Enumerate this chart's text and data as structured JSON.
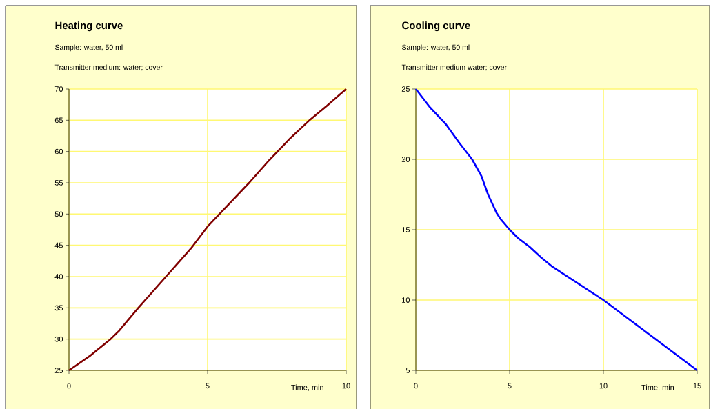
{
  "chart_data": [
    {
      "type": "line",
      "title": "Heating curve",
      "subtitle": "Sample: water, 50 ml",
      "annotations": [
        "Transmitter medium: water; cover"
      ],
      "xlabel": "Time, min",
      "x": [
        0,
        0.75,
        1.5,
        1.8,
        2.5,
        3.5,
        4.4,
        5,
        6.5,
        7.2,
        8,
        8.7,
        9.3,
        10
      ],
      "series": [
        {
          "color": "#800000",
          "values": [
            25,
            27.3,
            30,
            31.3,
            35,
            40,
            44.5,
            48,
            55,
            58.5,
            62.2,
            65.1,
            67.3,
            70
          ]
        }
      ],
      "xlim": [
        0,
        10
      ],
      "ylim": [
        25,
        70
      ],
      "xticks": [
        0,
        5,
        10
      ],
      "yticks": [
        25,
        30,
        35,
        40,
        45,
        50,
        55,
        60,
        65,
        70
      ],
      "grid": true
    },
    {
      "type": "line",
      "title": "Cooling curve",
      "subtitle": "Sample: water, 50 ml",
      "annotations": [
        "Transmitter medium water; cover"
      ],
      "xlabel": "Time, min",
      "x": [
        0,
        0.75,
        1.6,
        2.3,
        3,
        3.5,
        3.85,
        4.3,
        4.55,
        5,
        5.45,
        6.05,
        6.7,
        7.25,
        10,
        15
      ],
      "series": [
        {
          "color": "#0000ff",
          "values": [
            25,
            23.7,
            22.5,
            21.2,
            20,
            18.8,
            17.5,
            16.2,
            15.7,
            15,
            14.4,
            13.8,
            13,
            12.4,
            10,
            5
          ]
        }
      ],
      "xlim": [
        0,
        15
      ],
      "ylim": [
        5,
        25
      ],
      "xticks": [
        0,
        5,
        10,
        15
      ],
      "yticks": [
        5,
        10,
        15,
        20,
        25
      ],
      "grid": true
    }
  ]
}
